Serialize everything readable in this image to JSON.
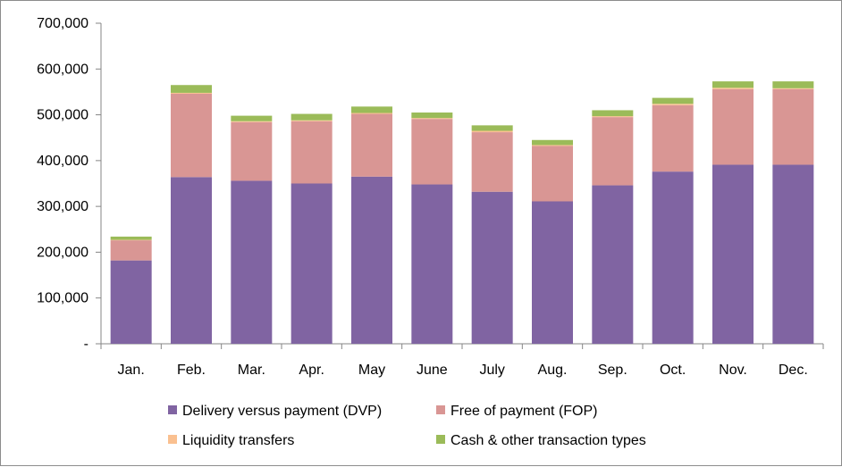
{
  "chart_data": {
    "type": "bar",
    "stacked": true,
    "title": "",
    "xlabel": "",
    "ylabel": "",
    "ylim": [
      0,
      700000
    ],
    "yticks": [
      0,
      100000,
      200000,
      300000,
      400000,
      500000,
      600000,
      700000
    ],
    "ytick_labels": [
      "-",
      "100,000",
      "200,000",
      "300,000",
      "400,000",
      "500,000",
      "600,000",
      "700,000"
    ],
    "categories": [
      "Jan.",
      "Feb.",
      "Mar.",
      "Apr.",
      "May",
      "June",
      "July",
      "Aug.",
      "Sep.",
      "Oct.",
      "Nov.",
      "Dec."
    ],
    "series": [
      {
        "name": "Delivery versus payment (DVP)",
        "color": "#8064a2",
        "values": [
          182000,
          364000,
          356000,
          350000,
          365000,
          348000,
          332000,
          311000,
          346000,
          376000,
          391000,
          391000
        ]
      },
      {
        "name": "Free of payment (FOP)",
        "color": "#d99694",
        "values": [
          44000,
          182000,
          128000,
          136000,
          137000,
          143000,
          130000,
          121000,
          149000,
          145000,
          165000,
          165000
        ]
      },
      {
        "name": "Liquidity transfers",
        "color": "#fac090",
        "values": [
          1000,
          2000,
          2000,
          2000,
          2000,
          2000,
          3000,
          2000,
          2000,
          3000,
          3000,
          2000
        ]
      },
      {
        "name": "Cash & other transaction types",
        "color": "#9bbb59",
        "values": [
          7000,
          17000,
          12000,
          14000,
          14000,
          12000,
          12000,
          11000,
          13000,
          13000,
          14000,
          15000
        ]
      }
    ],
    "legend_position": "bottom",
    "grid": false
  }
}
